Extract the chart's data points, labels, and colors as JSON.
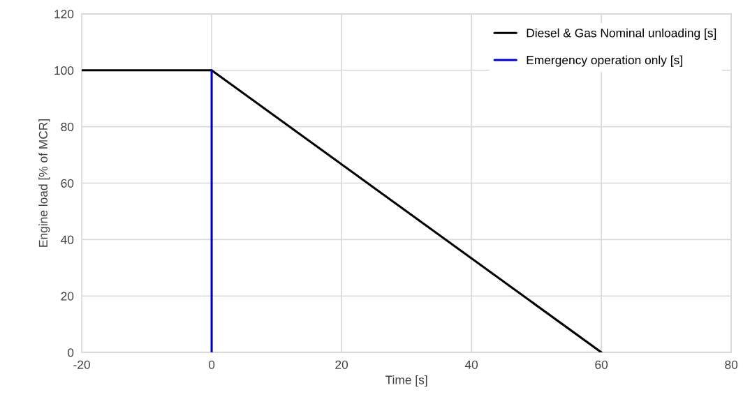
{
  "chart_data": {
    "type": "line",
    "xlabel": "Time [s]",
    "ylabel": "Engine load [% of MCR]",
    "xlim": [
      -20,
      80
    ],
    "xticks": [
      -20,
      0,
      20,
      40,
      60,
      80
    ],
    "ylim": [
      0,
      120
    ],
    "yticks": [
      0,
      20,
      40,
      60,
      80,
      100,
      120
    ],
    "grid": true,
    "legend": "top right",
    "marker": "none",
    "line_style": "solid",
    "series": [
      {
        "name": "Diesel & Gas Nominal unloading [s]",
        "color": "#000000",
        "x": [
          -20,
          0,
          60
        ],
        "values": [
          100,
          100,
          0
        ]
      },
      {
        "name": "Emergency operation only [s]",
        "color": "#0000cc",
        "x": [
          0,
          0
        ],
        "values": [
          100,
          0
        ]
      }
    ]
  }
}
